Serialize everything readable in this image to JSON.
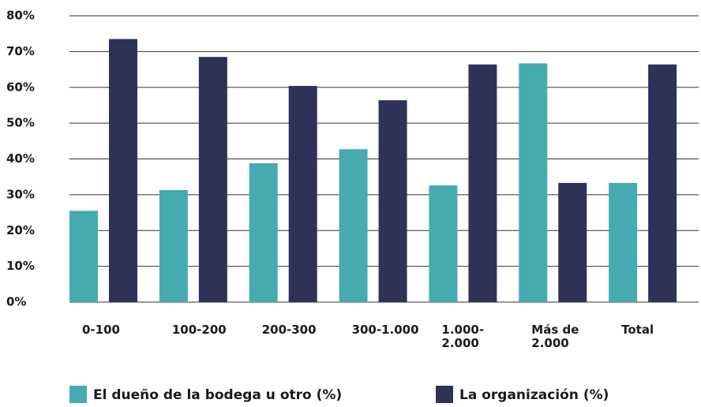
{
  "chart_data": {
    "type": "bar",
    "categories": [
      "0-100",
      "100-200",
      "200-300",
      "300-1.000",
      "1.000-\n2.000",
      "Más de\n2.000",
      "Total"
    ],
    "series": [
      {
        "name": "El dueño de la bodega u otro (%)",
        "color": "#45abb1",
        "values": [
          25.5,
          31.3,
          38.8,
          42.7,
          32.6,
          66.7,
          33.3
        ]
      },
      {
        "name": "La organización (%)",
        "color": "#2e3259",
        "values": [
          73.5,
          68.5,
          60.4,
          56.4,
          66.4,
          33.3,
          66.4
        ]
      }
    ],
    "ylim": [
      0,
      80
    ],
    "yticks": [
      {
        "value": 0,
        "label": "0%"
      },
      {
        "value": 10,
        "label": "10%"
      },
      {
        "value": 20,
        "label": "20%"
      },
      {
        "value": 30,
        "label": "30%"
      },
      {
        "value": 40,
        "label": "40%"
      },
      {
        "value": 50,
        "label": "50%"
      },
      {
        "value": 60,
        "label": "60%"
      },
      {
        "value": 70,
        "label": "70%"
      },
      {
        "value": 80,
        "label": "80%"
      }
    ],
    "grid": true
  }
}
